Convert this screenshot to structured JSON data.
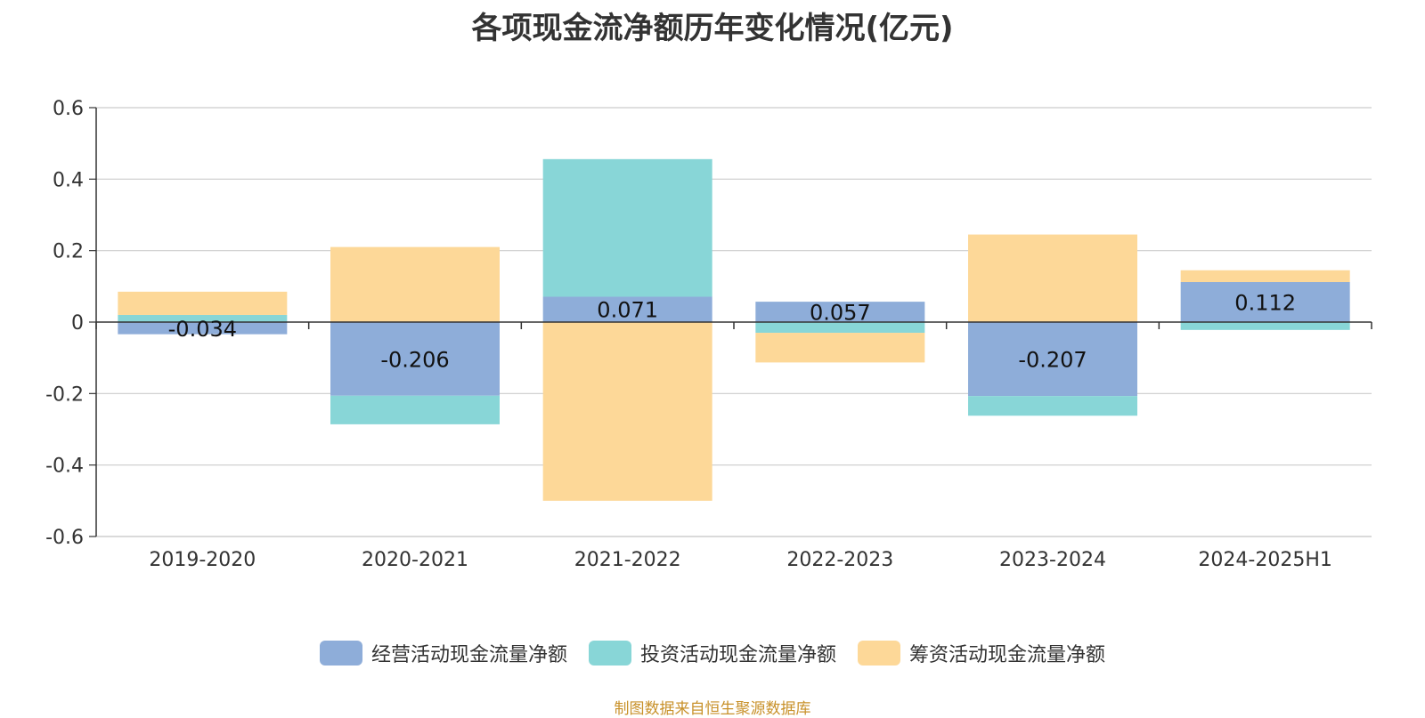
{
  "chart_data": {
    "type": "bar",
    "stacked": true,
    "title": "各项现金流净额历年变化情况(亿元)",
    "xlabel": "",
    "ylabel": "",
    "categories": [
      "2019-2020",
      "2020-2021",
      "2021-2022",
      "2022-2023",
      "2023-2024",
      "2024-2025H1"
    ],
    "ylim": [
      -0.6,
      0.6
    ],
    "yticks": [
      0.6,
      0.4,
      0.2,
      0,
      -0.2,
      -0.4,
      -0.6
    ],
    "ytick_labels": [
      "0.6",
      "0.4",
      "0.2",
      "0",
      "-0.2",
      "-0.4",
      "-0.6"
    ],
    "grid": true,
    "legend_position": "bottom-center",
    "series": [
      {
        "name": "经营活动现金流量净额",
        "color": "#8eadd9",
        "values": [
          -0.034,
          -0.206,
          0.071,
          0.057,
          -0.207,
          0.112
        ],
        "labels": [
          "-0.034",
          "-0.206",
          "0.071",
          "0.057",
          "-0.207",
          "0.112"
        ]
      },
      {
        "name": "投资活动现金流量净额",
        "color": "#88d6d7",
        "values": [
          0.02,
          -0.08,
          0.385,
          -0.03,
          -0.055,
          -0.022
        ]
      },
      {
        "name": "筹资活动现金流量净额",
        "color": "#fdd898",
        "values": [
          0.065,
          0.21,
          -0.5,
          -0.083,
          0.245,
          0.033
        ]
      }
    ]
  },
  "source": "制图数据来自恒生聚源数据库"
}
